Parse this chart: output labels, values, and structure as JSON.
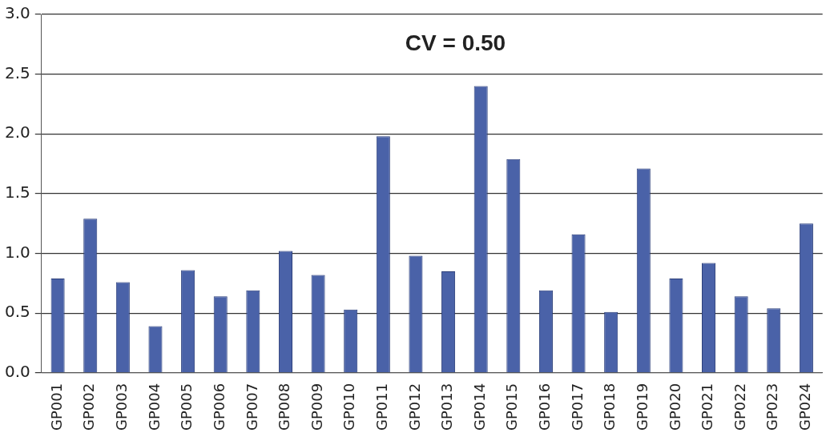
{
  "chart_data": {
    "type": "bar",
    "title": "CV = 0.50",
    "categories": [
      "GP001",
      "GP002",
      "GP003",
      "GP004",
      "GP005",
      "GP006",
      "GP007",
      "GP008",
      "GP009",
      "GP010",
      "GP011",
      "GP012",
      "GP013",
      "GP014",
      "GP015",
      "GP016",
      "GP017",
      "GP018",
      "GP019",
      "GP020",
      "GP021",
      "GP022",
      "GP023",
      "GP024"
    ],
    "values": [
      0.79,
      1.29,
      0.76,
      0.39,
      0.86,
      0.64,
      0.69,
      1.02,
      0.82,
      0.53,
      1.98,
      0.98,
      0.85,
      2.4,
      1.79,
      0.69,
      1.16,
      0.51,
      1.71,
      0.79,
      0.92,
      0.64,
      0.54,
      1.25
    ],
    "color": "#4a62a8",
    "ylim": [
      0,
      3
    ],
    "yticks": [
      {
        "value": 0,
        "label": "0.0"
      },
      {
        "value": 0.5,
        "label": "0.5"
      },
      {
        "value": 1,
        "label": "1.0"
      },
      {
        "value": 1.5,
        "label": "1.5"
      },
      {
        "value": 2,
        "label": "2.0"
      },
      {
        "value": 2.5,
        "label": "2.5"
      },
      {
        "value": 3,
        "label": "3.0"
      }
    ],
    "grid": "y",
    "legend": false
  }
}
